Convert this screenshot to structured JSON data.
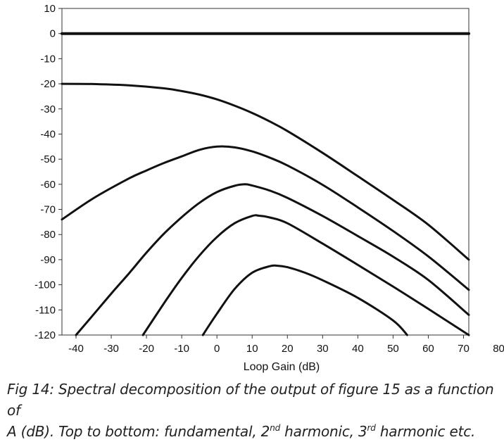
{
  "chart_data": {
    "type": "line",
    "xlabel": "Loop Gain (dB)",
    "ylabel": "",
    "xlim": [
      -44,
      71.5
    ],
    "ylim": [
      -120,
      10
    ],
    "x_ticks": [
      "-40",
      "-30",
      "-20",
      "-10",
      "0",
      "10",
      "20",
      "30",
      "40",
      "50",
      "60",
      "70",
      "80"
    ],
    "y_ticks": [
      "10",
      "0",
      "-10",
      "-20",
      "-30",
      "-40",
      "-50",
      "-60",
      "-70",
      "-80",
      "-90",
      "-100",
      "-110",
      "-120"
    ],
    "grid": false,
    "legend": "none",
    "series": [
      {
        "x": [
          -44,
          -20,
          0,
          20,
          40,
          71.5
        ],
        "y": [
          0,
          0,
          0,
          0,
          0,
          0
        ]
      },
      {
        "x": [
          -44,
          -35,
          -25,
          -15,
          -10,
          -5,
          0,
          5,
          10,
          15,
          20,
          30,
          40,
          50,
          60,
          71.5
        ],
        "y": [
          -20,
          -20.1,
          -20.6,
          -21.8,
          -22.9,
          -24.3,
          -26.2,
          -28.7,
          -31.6,
          -35,
          -38.8,
          -47.5,
          -56.8,
          -66.2,
          -76.1,
          -90
        ]
      },
      {
        "x": [
          -44,
          -35,
          -25,
          -20,
          -15,
          -10,
          -5,
          0,
          5,
          10,
          15,
          20,
          30,
          40,
          50,
          60,
          71.5
        ],
        "y": [
          -74,
          -65.5,
          -57.7,
          -54.5,
          -51.5,
          -48.9,
          -46.3,
          -45,
          -45.3,
          -46.9,
          -49.4,
          -52.5,
          -60.2,
          -69.2,
          -78.6,
          -88.7,
          -102
        ]
      },
      {
        "x": [
          -40,
          -35,
          -30,
          -25,
          -20,
          -15,
          -10,
          -5,
          0,
          5,
          8,
          10,
          15,
          20,
          30,
          40,
          50,
          60,
          71.5
        ],
        "y": [
          -120,
          -111.8,
          -103.5,
          -95.5,
          -87.2,
          -79.6,
          -73.1,
          -67.4,
          -63.1,
          -60.6,
          -60,
          -60.5,
          -62.5,
          -65.4,
          -72.6,
          -80.6,
          -88.8,
          -98.1,
          -112
        ]
      },
      {
        "x": [
          -21,
          -15,
          -10,
          -5,
          0,
          5,
          10,
          12,
          15,
          20,
          30,
          40,
          50,
          60,
          71.5
        ],
        "y": [
          -120,
          -107.3,
          -97.3,
          -88.4,
          -81,
          -75.5,
          -72.6,
          -72.5,
          -73.2,
          -75.5,
          -83.6,
          -92.1,
          -100.7,
          -109.6,
          -120
        ]
      },
      {
        "x": [
          -4,
          0,
          5,
          10,
          15,
          17,
          20,
          25,
          30,
          40,
          50,
          54
        ],
        "y": [
          -120,
          -111.5,
          -101.7,
          -95.2,
          -92.6,
          -92.4,
          -93,
          -95.2,
          -98.2,
          -105.2,
          -114.2,
          -120
        ]
      }
    ]
  },
  "caption": {
    "line1": "Fig 14: Spectral decomposition of the output of figure 15 as a function of",
    "line2_a": "A (dB). Top to bottom: fundamental, 2",
    "sup_nd": "nd",
    "line2_b": " harmonic, 3",
    "sup_rd": "rd",
    "line2_c": " harmonic etc."
  },
  "colors": {
    "curve": "#111111",
    "frame": "#333333",
    "text": "#111111"
  }
}
